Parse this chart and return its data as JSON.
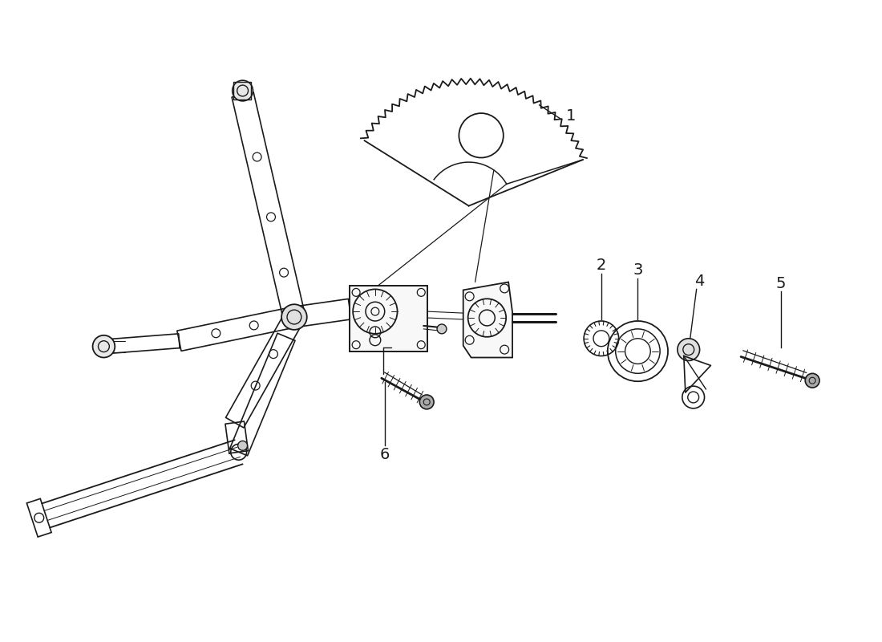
{
  "background_color": "#ffffff",
  "line_color": "#1a1a1a",
  "label_color": "#1a1a1a",
  "figsize": [
    11.0,
    8.0
  ],
  "dpi": 100,
  "xlim": [
    0,
    11
  ],
  "ylim": [
    0,
    8
  ]
}
